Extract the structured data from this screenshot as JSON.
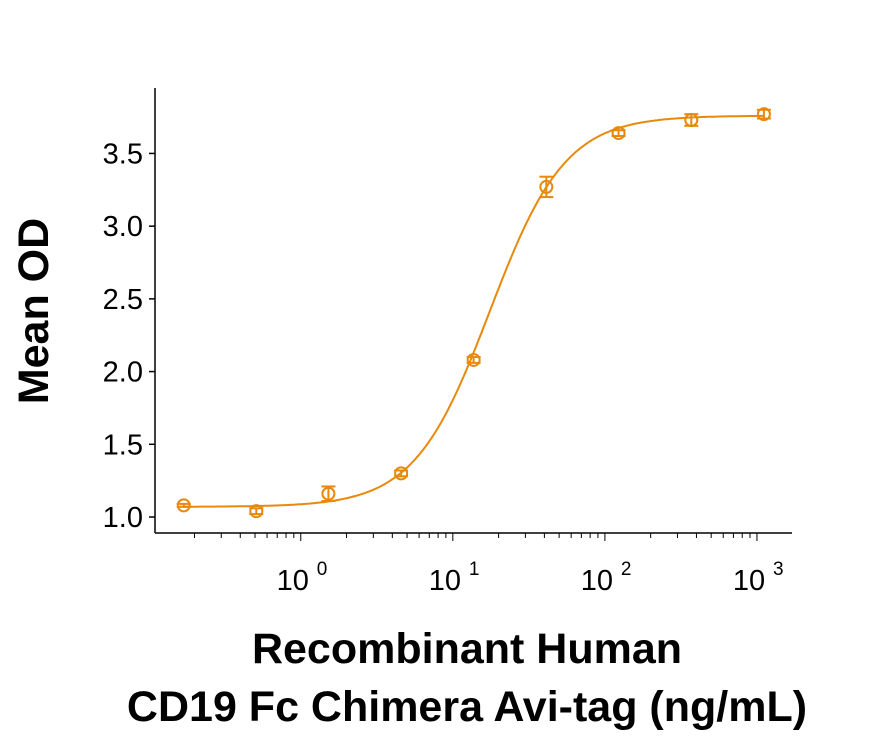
{
  "chart_data": {
    "type": "scatter",
    "title": "",
    "xlabel_lines": [
      "Recombinant Human",
      "CD19 Fc Chimera Avi-tag (ng/mL)"
    ],
    "ylabel": "Mean OD",
    "x_scale": "log",
    "xlim": [
      0.11,
      1700
    ],
    "ylim": [
      0.89,
      3.95
    ],
    "x_ticks": [
      {
        "value": 1,
        "base": "10",
        "exp": "0"
      },
      {
        "value": 10,
        "base": "10",
        "exp": "1"
      },
      {
        "value": 100,
        "base": "10",
        "exp": "2"
      },
      {
        "value": 1000,
        "base": "10",
        "exp": "3"
      }
    ],
    "y_ticks": [
      {
        "value": 1.0,
        "label": "1.0"
      },
      {
        "value": 1.5,
        "label": "1.5"
      },
      {
        "value": 2.0,
        "label": "2.0"
      },
      {
        "value": 2.5,
        "label": "2.5"
      },
      {
        "value": 3.0,
        "label": "3.0"
      },
      {
        "value": 3.5,
        "label": "3.5"
      }
    ],
    "grid": false,
    "color": "#E8890C",
    "points": [
      {
        "x": 0.17,
        "y": 1.08,
        "err": 0.01
      },
      {
        "x": 0.51,
        "y": 1.04,
        "err": 0.02
      },
      {
        "x": 1.52,
        "y": 1.16,
        "err": 0.05
      },
      {
        "x": 4.57,
        "y": 1.3,
        "err": 0.02
      },
      {
        "x": 13.7,
        "y": 2.08,
        "err": 0.02
      },
      {
        "x": 41.2,
        "y": 3.27,
        "err": 0.07
      },
      {
        "x": 123,
        "y": 3.64,
        "err": 0.02
      },
      {
        "x": 370,
        "y": 3.73,
        "err": 0.04
      },
      {
        "x": 1111,
        "y": 3.77,
        "err": 0.03
      }
    ],
    "fit": {
      "model": "4PL",
      "bottom": 1.07,
      "top": 3.76,
      "ec50": 17.5,
      "hill": 1.75
    }
  }
}
